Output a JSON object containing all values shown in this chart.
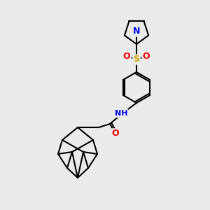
{
  "background_color": "#ebebeb",
  "atom_colors": {
    "N": "#0000ff",
    "O": "#ff0000",
    "S": "#ccaa00",
    "C": "#000000",
    "H": "#888888"
  },
  "bond_color": "#000000",
  "bond_width": 1.5,
  "font_size_atom": 9
}
